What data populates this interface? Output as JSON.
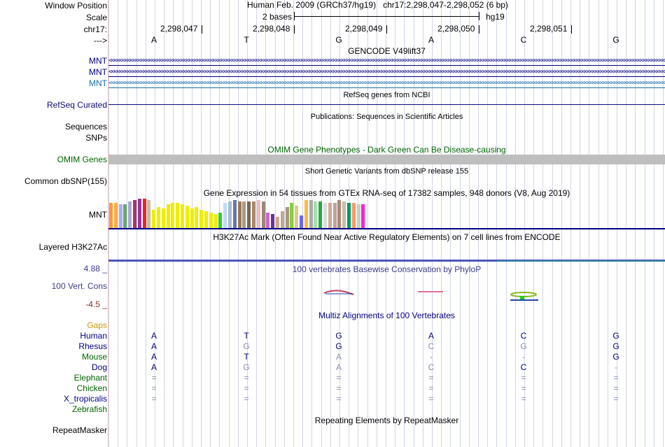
{
  "header": {
    "assembly": "Human Feb. 2009 (GRCh37/hg19)",
    "position": "chr17:2,298,047-2,298,052 (6 bp)",
    "scale_text": "2 bases",
    "scale_db": "hg19",
    "coords": [
      "2,298,047",
      "2,298,048",
      "2,298,049",
      "2,298,050",
      "2,298,051"
    ],
    "bases": [
      "A",
      "T",
      "G",
      "A",
      "C",
      "G"
    ]
  },
  "labels": {
    "window_position": "Window Position",
    "scale": "Scale",
    "chrom": "chr17:",
    "strand": "--->",
    "gencode_1": "MNT",
    "gencode_2": "MNT",
    "gencode_3": "MNT",
    "refseq": "RefSeq Curated",
    "sequences": "Sequences",
    "snps": "SNPs",
    "omim": "OMIM Genes",
    "dbsnp": "Common dbSNP(155)",
    "gtex": "MNT",
    "h3k27ac": "Layered H3K27Ac",
    "cons_max": "4.88 _",
    "cons": "100 Vert. Cons",
    "cons_min": "-4.5 _",
    "gaps": "Gaps",
    "repeatmasker": "RepeatMasker"
  },
  "track_titles": {
    "gencode": "GENCODE V49lift37",
    "refseq": "RefSeq genes from NCBI",
    "publications": "Publications: Sequences in Scientific Articles",
    "omim": "OMIM Gene Phenotypes - Dark Green Can Be Disease-causing",
    "dbsnp": "Short Genetic Variants from dbSNP release 155",
    "gtex": "Gene Expression in 54 tissues from GTEx RNA-seq of 17382 samples, 948 donors (V8, Aug 2019)",
    "h3k27ac": "H3K27Ac Mark (Often Found Near Active Regulatory Elements) on 7 cell lines from ENCODE",
    "phylop": "100 vertebrates Basewise Conservation by PhyloP",
    "multiz": "Multiz Alignments of 100 Vertebrates",
    "repeatmasker": "Repeating Elements by RepeatMasker"
  },
  "alignment": [
    {
      "species": "Human",
      "bases": [
        "A",
        "T",
        "G",
        "A",
        "C",
        "G"
      ]
    },
    {
      "species": "Rhesus",
      "bases": [
        "A",
        "G",
        "G",
        "C",
        "G",
        "G"
      ]
    },
    {
      "species": "Mouse",
      "bases": [
        "A",
        "T",
        "A",
        "-",
        "-",
        "G"
      ]
    },
    {
      "species": "Dog",
      "bases": [
        "A",
        "G",
        "A",
        "C",
        "C",
        "-"
      ]
    },
    {
      "species": "Elephant",
      "bases": [
        "=",
        "=",
        "=",
        "=",
        "=",
        "="
      ]
    },
    {
      "species": "Chicken",
      "bases": [
        "=",
        "=",
        "=",
        "=",
        "=",
        "="
      ]
    },
    {
      "species": "X_tropicalis",
      "bases": [
        "=",
        "=",
        "=",
        "=",
        "=",
        "="
      ]
    },
    {
      "species": "Zebrafish",
      "bases": [
        "",
        "",
        "",
        "",
        "",
        ""
      ]
    }
  ],
  "gtex_colors": [
    "#ff9933",
    "#ffaa44",
    "#aaaaff",
    "#66aa66",
    "#a6a9d6",
    "#aa3366",
    "#993399",
    "#ee2222",
    "#ccbb99",
    "#eeee00",
    "#eeee00",
    "#eeee00",
    "#eeee00",
    "#eeee00",
    "#eeee00",
    "#eeee00",
    "#eeee00",
    "#eeee00",
    "#eeee00",
    "#eeee00",
    "#eeee00",
    "#eeee00",
    "#eeee00",
    "#33cc33",
    "#bbddff",
    "#aabbcc",
    "#6677aa",
    "#997755",
    "#aa9988",
    "#776655",
    "#aa8866",
    "#eebbbb",
    "#998877",
    "#cc66cc",
    "#663399",
    "#ccaa88",
    "#bbaa99",
    "#aa9977",
    "#88cc44",
    "#ddcc88",
    "#6666ff",
    "#ffbb44",
    "#aaaaaa",
    "#aaddaa",
    "#22aa44",
    "#dddddd",
    "#ccaa99",
    "#c0a0a0",
    "#aa8877",
    "#ccbbaa",
    "#009966",
    "#ff9966",
    "#cccccc",
    "#ff22cc"
  ],
  "colors": {
    "gencode_dark": "#000080",
    "gencode_teal": "#1a6fae",
    "omim_bar": "#bebebe",
    "omim_title": "#006400",
    "cons_title": "#3c3c8c",
    "gaps_label": "#d2960a",
    "alignment_faded": "#8c8cb4"
  }
}
